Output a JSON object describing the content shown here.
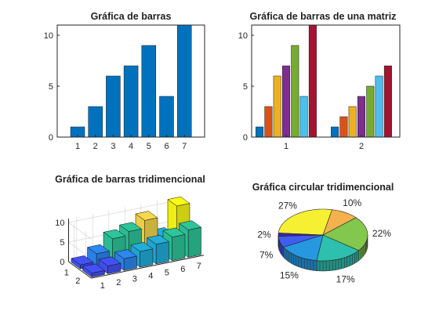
{
  "chart_data": [
    {
      "type": "bar",
      "title": "Gráfica de barras",
      "categories": [
        "1",
        "2",
        "3",
        "4",
        "5",
        "6",
        "7"
      ],
      "values": [
        1,
        3,
        6,
        7,
        9,
        4,
        11
      ],
      "ylim": [
        0,
        11
      ],
      "yticks": [
        0,
        5,
        10
      ],
      "color": "#0072BD"
    },
    {
      "type": "bar",
      "title": "Gráfica de barras de una matriz",
      "categories": [
        "1",
        "2"
      ],
      "series": [
        {
          "values": [
            1,
            1
          ],
          "color": "#0072BD"
        },
        {
          "values": [
            3,
            2
          ],
          "color": "#D95319"
        },
        {
          "values": [
            6,
            3
          ],
          "color": "#EDB120"
        },
        {
          "values": [
            7,
            4
          ],
          "color": "#7E2F8E"
        },
        {
          "values": [
            9,
            5
          ],
          "color": "#77AC30"
        },
        {
          "values": [
            4,
            6
          ],
          "color": "#4DBEEE"
        },
        {
          "values": [
            11,
            7
          ],
          "color": "#A2142F"
        }
      ],
      "ylim": [
        0,
        11
      ],
      "yticks": [
        0,
        5,
        10
      ]
    },
    {
      "type": "bar3d",
      "title": "Gráfica de barras tridimencional",
      "x_ticks": [
        "1",
        "2",
        "3",
        "4",
        "5",
        "6",
        "7"
      ],
      "y_ticks": [
        "1",
        "2"
      ],
      "z_ticks": [
        "0",
        "5",
        "10"
      ],
      "rows": [
        [
          1,
          3,
          6,
          7,
          9,
          4,
          11
        ],
        [
          1,
          2,
          3,
          4,
          5,
          6,
          7
        ]
      ],
      "colormap": [
        "#3E26A8",
        "#4352F7",
        "#2C87F2",
        "#22ADDA",
        "#2DC59A",
        "#81CC57",
        "#F6D84C",
        "#F9FB15"
      ]
    },
    {
      "type": "pie3d",
      "title": "Gráfica circular tridimencional",
      "values": [
        27,
        10,
        22,
        17,
        15,
        7,
        2
      ],
      "labels": [
        "27%",
        "10%",
        "22%",
        "17%",
        "15%",
        "7%",
        "2%"
      ],
      "colors": [
        "#F6F033",
        "#F5B24C",
        "#82C84E",
        "#2EC0AE",
        "#2698E0",
        "#3F5DF0",
        "#4025A8"
      ]
    }
  ]
}
